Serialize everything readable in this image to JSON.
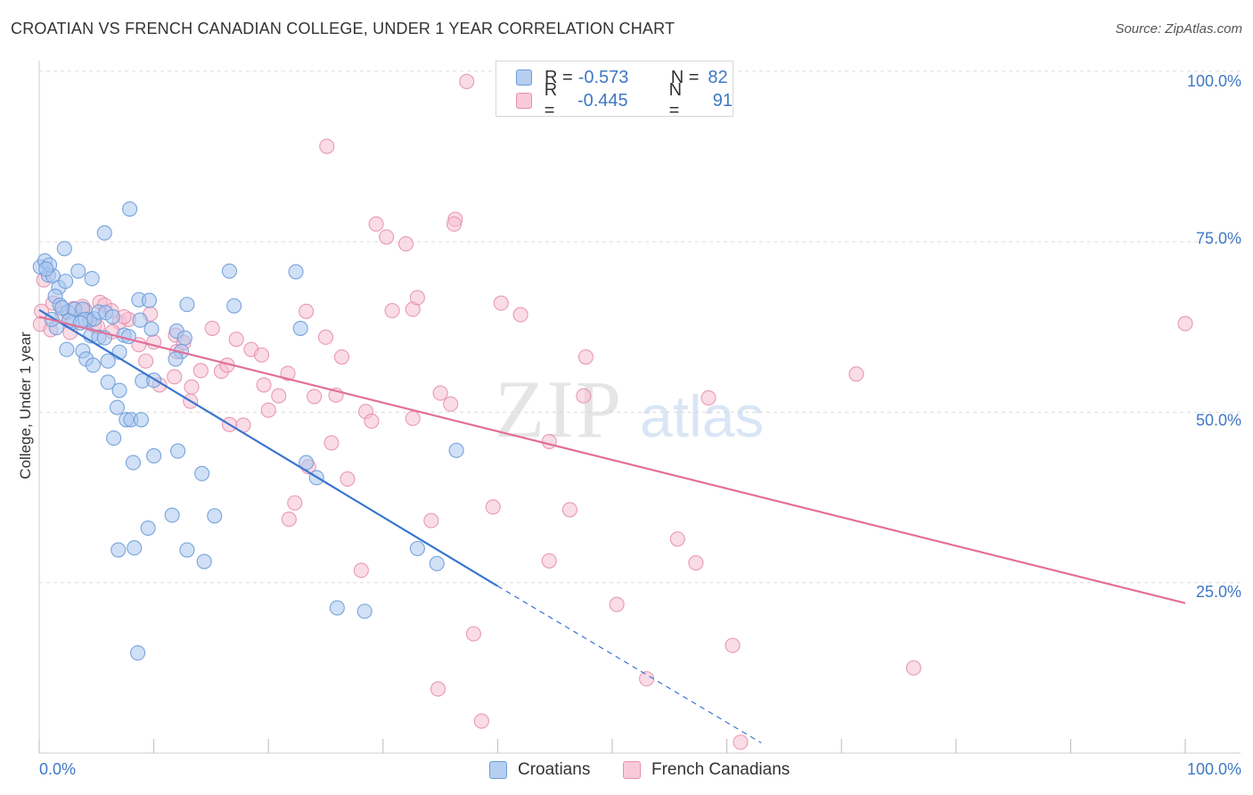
{
  "header": {
    "title": "CROATIAN VS FRENCH CANADIAN COLLEGE, UNDER 1 YEAR CORRELATION CHART",
    "source": "Source: ZipAtlas.com"
  },
  "legend": {
    "rows": [
      {
        "r_label": "R =",
        "r_value": "-0.573",
        "n_label": "N =",
        "n_value": "82"
      },
      {
        "r_label": "R =",
        "r_value": "-0.445",
        "n_label": "N =",
        "n_value": "91"
      }
    ],
    "bottom": [
      "Croatians",
      "French Canadians"
    ]
  },
  "watermark": {
    "zip": "ZIP",
    "atlas": "atlas"
  },
  "colors": {
    "croatians_fill": "#a9c7ef",
    "croatians_stroke": "#6b9bd8",
    "croatians_line": "#3a76cf",
    "french_fill": "#f6bfd2",
    "french_stroke": "#e58fae",
    "french_line": "#e07099",
    "axis_label_blue": "#3f78c4",
    "grid": "#dddddd"
  },
  "chart_data": {
    "type": "scatter",
    "title": "CROATIAN VS FRENCH CANADIAN COLLEGE, UNDER 1 YEAR CORRELATION CHART",
    "xlabel": "",
    "ylabel": "College, Under 1 year",
    "xlim": [
      0,
      100
    ],
    "ylim": [
      0,
      100
    ],
    "x_tick_labels": [
      "0.0%",
      "100.0%"
    ],
    "y_tick_labels": [
      "25.0%",
      "50.0%",
      "75.0%",
      "100.0%"
    ],
    "y_ticks": [
      25,
      50,
      75,
      100
    ],
    "grid": true,
    "legend_position": "top-center",
    "series": [
      {
        "name": "Croatians",
        "r": -0.573,
        "n": 82,
        "trend": {
          "x0": 0,
          "y0": 65.0,
          "x1": 40,
          "y1": 24.5,
          "dash_to_x": 63,
          "dash_to_y": 1.5
        },
        "points": [
          [
            0.1,
            71.3
          ],
          [
            0.8,
            70.1
          ],
          [
            0.5,
            72.2
          ],
          [
            1.2,
            70.0
          ],
          [
            2.2,
            74.0
          ],
          [
            0.9,
            71.6
          ],
          [
            1.7,
            68.3
          ],
          [
            2.3,
            69.2
          ],
          [
            0.6,
            71.0
          ],
          [
            1.4,
            67.0
          ],
          [
            3.4,
            70.7
          ],
          [
            4.6,
            69.6
          ],
          [
            5.7,
            76.3
          ],
          [
            7.9,
            79.8
          ],
          [
            1.8,
            65.7
          ],
          [
            2.5,
            64.7
          ],
          [
            2.9,
            63.2
          ],
          [
            3.1,
            65.1
          ],
          [
            3.8,
            65.1
          ],
          [
            4.4,
            63.5
          ],
          [
            4.0,
            63.6
          ],
          [
            4.8,
            63.7
          ],
          [
            5.2,
            64.7
          ],
          [
            5.8,
            64.6
          ],
          [
            6.4,
            64.0
          ],
          [
            8.7,
            66.5
          ],
          [
            9.6,
            66.4
          ],
          [
            12.9,
            65.8
          ],
          [
            17.0,
            65.6
          ],
          [
            16.6,
            70.7
          ],
          [
            22.4,
            70.6
          ],
          [
            1.5,
            62.4
          ],
          [
            2.6,
            63.4
          ],
          [
            3.6,
            63.1
          ],
          [
            4.5,
            61.2
          ],
          [
            5.2,
            61.0
          ],
          [
            5.7,
            60.9
          ],
          [
            7.4,
            61.3
          ],
          [
            7.8,
            61.1
          ],
          [
            8.8,
            63.5
          ],
          [
            9.8,
            62.2
          ],
          [
            12.0,
            61.9
          ],
          [
            12.7,
            60.9
          ],
          [
            22.8,
            62.3
          ],
          [
            2.4,
            59.2
          ],
          [
            3.8,
            59.0
          ],
          [
            7.0,
            58.8
          ],
          [
            12.4,
            58.9
          ],
          [
            11.9,
            57.8
          ],
          [
            6.0,
            57.5
          ],
          [
            4.1,
            57.8
          ],
          [
            4.7,
            56.9
          ],
          [
            6.0,
            54.4
          ],
          [
            7.0,
            53.2
          ],
          [
            9.0,
            54.6
          ],
          [
            10.0,
            54.7
          ],
          [
            6.8,
            50.7
          ],
          [
            7.6,
            48.9
          ],
          [
            8.0,
            48.9
          ],
          [
            8.9,
            48.9
          ],
          [
            6.5,
            46.2
          ],
          [
            12.1,
            44.3
          ],
          [
            10.0,
            43.6
          ],
          [
            8.2,
            42.6
          ],
          [
            23.3,
            42.6
          ],
          [
            14.2,
            41.0
          ],
          [
            24.2,
            40.4
          ],
          [
            36.4,
            44.4
          ],
          [
            11.6,
            34.9
          ],
          [
            15.3,
            34.8
          ],
          [
            9.5,
            33.0
          ],
          [
            6.9,
            29.8
          ],
          [
            8.3,
            30.1
          ],
          [
            12.9,
            29.8
          ],
          [
            14.4,
            28.1
          ],
          [
            33.0,
            30.0
          ],
          [
            34.7,
            27.8
          ],
          [
            26.0,
            21.3
          ],
          [
            28.4,
            20.8
          ],
          [
            8.6,
            14.7
          ],
          [
            1.1,
            63.6
          ],
          [
            2.0,
            65.3
          ]
        ]
      },
      {
        "name": "French Canadians",
        "r": -0.445,
        "n": 91,
        "trend": {
          "x0": 0,
          "y0": 64.0,
          "x1": 100,
          "y1": 22.0
        },
        "points": [
          [
            37.3,
            98.5
          ],
          [
            25.1,
            89.0
          ],
          [
            29.4,
            77.6
          ],
          [
            36.3,
            78.3
          ],
          [
            36.2,
            77.6
          ],
          [
            30.3,
            75.7
          ],
          [
            32.0,
            74.7
          ],
          [
            0.4,
            69.4
          ],
          [
            0.2,
            64.8
          ],
          [
            1.2,
            66.0
          ],
          [
            2.0,
            64.5
          ],
          [
            3.0,
            65.2
          ],
          [
            4.0,
            65.0
          ],
          [
            5.3,
            66.1
          ],
          [
            5.7,
            65.7
          ],
          [
            6.3,
            64.9
          ],
          [
            7.0,
            63.2
          ],
          [
            7.8,
            63.6
          ],
          [
            9.7,
            64.4
          ],
          [
            30.8,
            64.9
          ],
          [
            32.6,
            65.1
          ],
          [
            33.0,
            66.8
          ],
          [
            23.3,
            64.8
          ],
          [
            40.3,
            66.0
          ],
          [
            42.0,
            64.3
          ],
          [
            100.0,
            63.0
          ],
          [
            0.1,
            62.9
          ],
          [
            1.0,
            62.1
          ],
          [
            2.7,
            61.7
          ],
          [
            4.8,
            62.7
          ],
          [
            6.4,
            61.8
          ],
          [
            8.7,
            59.9
          ],
          [
            10.0,
            60.3
          ],
          [
            11.9,
            61.3
          ],
          [
            15.1,
            62.3
          ],
          [
            17.2,
            60.7
          ],
          [
            25.0,
            61.0
          ],
          [
            18.5,
            59.2
          ],
          [
            19.4,
            58.4
          ],
          [
            26.4,
            58.1
          ],
          [
            47.7,
            58.1
          ],
          [
            9.3,
            57.5
          ],
          [
            12.0,
            58.9
          ],
          [
            14.1,
            56.1
          ],
          [
            15.9,
            56.0
          ],
          [
            16.4,
            56.9
          ],
          [
            21.7,
            55.7
          ],
          [
            13.3,
            53.7
          ],
          [
            11.8,
            55.2
          ],
          [
            19.6,
            54.0
          ],
          [
            20.9,
            52.4
          ],
          [
            24.0,
            52.3
          ],
          [
            25.9,
            52.5
          ],
          [
            35.0,
            52.8
          ],
          [
            35.9,
            51.2
          ],
          [
            47.5,
            52.4
          ],
          [
            58.4,
            52.1
          ],
          [
            71.3,
            55.6
          ],
          [
            13.2,
            51.6
          ],
          [
            20.0,
            50.3
          ],
          [
            28.5,
            50.1
          ],
          [
            29.0,
            48.7
          ],
          [
            32.6,
            49.1
          ],
          [
            16.6,
            48.2
          ],
          [
            17.8,
            48.1
          ],
          [
            25.5,
            45.5
          ],
          [
            44.5,
            45.7
          ],
          [
            23.5,
            42.0
          ],
          [
            26.9,
            40.2
          ],
          [
            22.3,
            36.7
          ],
          [
            21.8,
            34.3
          ],
          [
            39.6,
            36.1
          ],
          [
            46.3,
            35.7
          ],
          [
            34.2,
            34.1
          ],
          [
            55.7,
            31.4
          ],
          [
            44.5,
            28.2
          ],
          [
            57.3,
            27.9
          ],
          [
            28.1,
            26.8
          ],
          [
            50.4,
            21.8
          ],
          [
            37.9,
            17.5
          ],
          [
            60.5,
            15.8
          ],
          [
            76.3,
            12.5
          ],
          [
            53.0,
            10.9
          ],
          [
            34.8,
            9.4
          ],
          [
            38.6,
            4.7
          ],
          [
            61.2,
            1.6
          ],
          [
            3.8,
            65.5
          ],
          [
            5.1,
            62.5
          ],
          [
            7.4,
            64.0
          ],
          [
            10.5,
            54.0
          ],
          [
            12.6,
            60.2
          ]
        ]
      }
    ]
  },
  "axis": {
    "ylabel": "College, Under 1 year"
  }
}
